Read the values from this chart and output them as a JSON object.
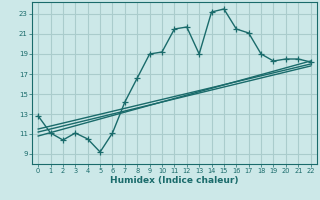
{
  "title": "",
  "xlabel": "Humidex (Indice chaleur)",
  "background_color": "#cce8e8",
  "grid_color": "#aacccc",
  "line_color": "#1a6b6b",
  "xlim": [
    -0.5,
    22.5
  ],
  "ylim": [
    8.0,
    24.2
  ],
  "xticks": [
    0,
    1,
    2,
    3,
    4,
    5,
    6,
    7,
    8,
    9,
    10,
    11,
    12,
    13,
    14,
    15,
    16,
    17,
    18,
    19,
    20,
    21,
    22
  ],
  "yticks": [
    9,
    11,
    13,
    15,
    17,
    19,
    21,
    23
  ],
  "line1_x": [
    0,
    1,
    2,
    3,
    4,
    5,
    6,
    7,
    8,
    9,
    10,
    11,
    12,
    13,
    14,
    15,
    16,
    17,
    18,
    19,
    20,
    21,
    22
  ],
  "line1_y": [
    12.8,
    11.1,
    10.4,
    11.1,
    10.5,
    9.2,
    11.1,
    14.2,
    16.6,
    19.0,
    19.2,
    21.5,
    21.7,
    19.0,
    23.2,
    23.5,
    21.5,
    21.1,
    19.0,
    18.3,
    18.5,
    18.5,
    18.2
  ],
  "line2_x": [
    0,
    22
  ],
  "line2_y": [
    10.8,
    18.3
  ],
  "line3_x": [
    0,
    22
  ],
  "line3_y": [
    11.2,
    17.8
  ],
  "line4_x": [
    0,
    22
  ],
  "line4_y": [
    11.5,
    18.0
  ],
  "marker_size": 4.0,
  "line_width": 1.0
}
